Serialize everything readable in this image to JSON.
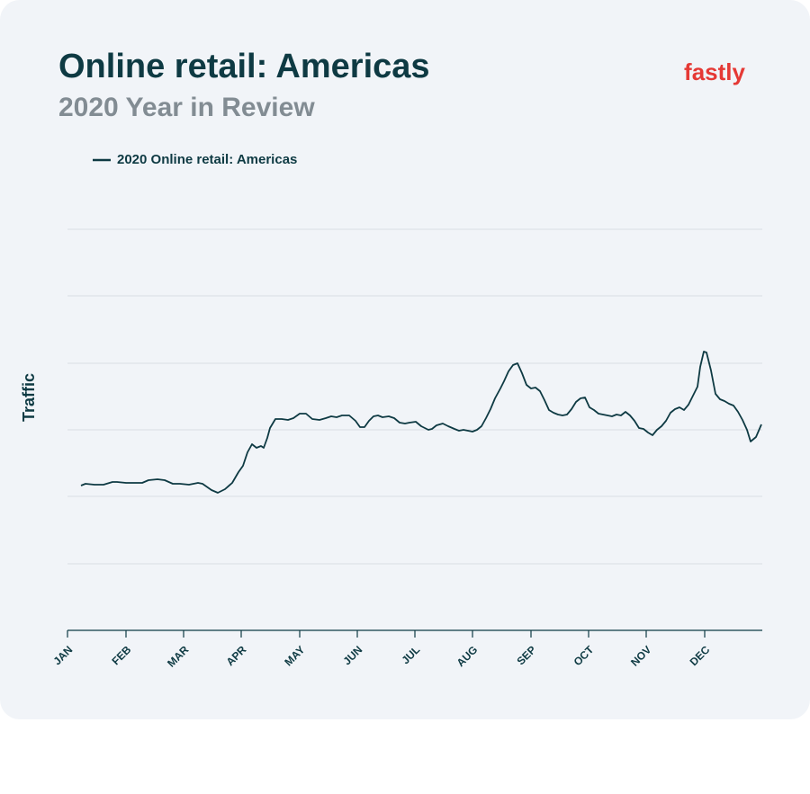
{
  "chart_data": {
    "type": "line",
    "title": "Online retail: Americas",
    "subtitle": "2020 Year in Review",
    "logo": "fastly",
    "y_label": "Traffic",
    "xlim": [
      0,
      772
    ],
    "xticks": [
      {
        "value": 0,
        "label": "JAN"
      },
      {
        "value": 65,
        "label": "FEB"
      },
      {
        "value": 129,
        "label": "MAR"
      },
      {
        "value": 193,
        "label": "APR"
      },
      {
        "value": 258,
        "label": "MAY"
      },
      {
        "value": 322,
        "label": "JUN"
      },
      {
        "value": 386,
        "label": "JUL"
      },
      {
        "value": 450,
        "label": "AUG"
      },
      {
        "value": 515,
        "label": "SEP"
      },
      {
        "value": 579,
        "label": "OCT"
      },
      {
        "value": 643,
        "label": "NOV"
      },
      {
        "value": 708,
        "label": "DEC"
      }
    ],
    "ylim": [
      0,
      446
    ],
    "yticks": [
      0,
      74,
      149,
      223,
      297,
      372,
      446
    ],
    "grid": true,
    "legend": "top-left",
    "x": [
      15,
      20,
      30,
      40,
      50,
      55,
      65,
      75,
      83,
      90,
      100,
      108,
      117,
      125,
      135,
      145,
      150,
      160,
      167,
      175,
      183,
      190,
      195,
      200,
      205,
      210,
      215,
      218,
      222,
      225,
      231,
      238,
      245,
      251,
      258,
      265,
      272,
      280,
      287,
      293,
      299,
      305,
      313,
      320,
      325,
      330,
      335,
      340,
      345,
      350,
      357,
      363,
      369,
      375,
      380,
      387,
      393,
      401,
      405,
      410,
      417,
      423,
      430,
      435,
      440,
      445,
      450,
      455,
      460,
      465,
      470,
      475,
      481,
      485,
      490,
      495,
      500,
      505,
      510,
      515,
      520,
      525,
      530,
      535,
      540,
      545,
      550,
      555,
      560,
      565,
      570,
      575,
      580,
      585,
      590,
      595,
      600,
      605,
      610,
      615,
      620,
      625,
      630,
      635,
      640,
      645,
      650,
      655,
      660,
      665,
      670,
      675,
      680,
      685,
      690,
      695,
      700,
      703,
      707,
      710,
      715,
      720,
      725,
      730,
      735,
      740,
      745,
      750,
      755,
      759,
      765,
      771
    ],
    "series": [
      {
        "name": "2020 Online retail: Americas",
        "color": "#0e3a43",
        "values": [
          161,
          163,
          162,
          162,
          165,
          165,
          164,
          164,
          164,
          167,
          168,
          167,
          163,
          163,
          162,
          164,
          163,
          156,
          153,
          157,
          164,
          176,
          183,
          198,
          207,
          203,
          205,
          203,
          214,
          225,
          235,
          235,
          234,
          236,
          241,
          241,
          235,
          234,
          236,
          238,
          237,
          239,
          239,
          233,
          226,
          226,
          233,
          238,
          239,
          237,
          238,
          236,
          231,
          230,
          231,
          232,
          227,
          223,
          224,
          228,
          230,
          227,
          224,
          222,
          223,
          222,
          221,
          223,
          227,
          236,
          246,
          258,
          269,
          277,
          288,
          295,
          297,
          286,
          273,
          269,
          270,
          266,
          256,
          245,
          242,
          240,
          239,
          240,
          246,
          254,
          258,
          259,
          248,
          245,
          241,
          240,
          239,
          238,
          240,
          239,
          243,
          239,
          233,
          225,
          224,
          220,
          217,
          223,
          227,
          233,
          242,
          246,
          248,
          245,
          251,
          261,
          271,
          293,
          310,
          309,
          289,
          263,
          257,
          255,
          252,
          250,
          243,
          234,
          223,
          210,
          215,
          229
        ]
      }
    ]
  }
}
